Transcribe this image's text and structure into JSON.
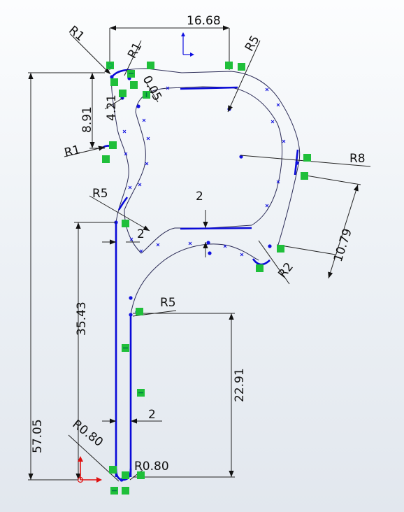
{
  "dimensions": {
    "d_16_68": "16.68",
    "r1_top_left": "R1",
    "r1_top_mid": "R1",
    "r5_top_right": "R5",
    "d_0_05": "0.05",
    "d_4_21": "4.21",
    "d_8_91": "8.91",
    "r1_left": "R1",
    "r8_right": "R8",
    "r5_mid_left": "R5",
    "d_2_mid": "2",
    "d_2_left": "2",
    "d_10_79": "10.79",
    "r2_right": "R2",
    "r5_lower": "R5",
    "d_35_43": "35.43",
    "d_22_91": "22.91",
    "d_2_bottom": "2",
    "d_57_05": "57.05",
    "r0_80_left": "R0.80",
    "r0_80_right": "R0.80"
  },
  "colors": {
    "sketch_geometry": "#1010e0",
    "dimension": "#222222",
    "relation_badge": "#1fbf3a",
    "origin_axis": "#e01010"
  },
  "icons": [
    "origin-icon",
    "relation-badge-icon",
    "sketch-point-icon"
  ]
}
